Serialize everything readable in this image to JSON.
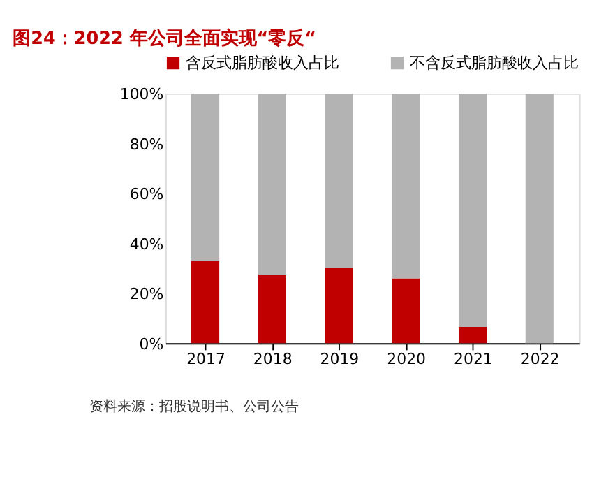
{
  "chart_data": {
    "type": "bar",
    "title": "图24：2022 年公司全面实现“零反“",
    "stacked": true,
    "categories": [
      "2017",
      "2018",
      "2019",
      "2020",
      "2021",
      "2022"
    ],
    "series": [
      {
        "name": "含反式脂肪酸收入占比",
        "color": "#c00000",
        "values": [
          33,
          27.5,
          30,
          26,
          6.5,
          0
        ]
      },
      {
        "name": "不含反式脂肪酸收入占比",
        "color": "#b3b3b3",
        "values": [
          67,
          72.5,
          70,
          74,
          93.5,
          100
        ]
      }
    ],
    "ylim": [
      0,
      100
    ],
    "yticks": [
      {
        "value": 0,
        "label": "0%"
      },
      {
        "value": 20,
        "label": "20%"
      },
      {
        "value": 40,
        "label": "40%"
      },
      {
        "value": 60,
        "label": "60%"
      },
      {
        "value": 80,
        "label": "80%"
      },
      {
        "value": 100,
        "label": "100%"
      }
    ],
    "legend": "top",
    "grid": false,
    "annotations": [
      "资料来源：招股说明书、公司公告"
    ]
  }
}
